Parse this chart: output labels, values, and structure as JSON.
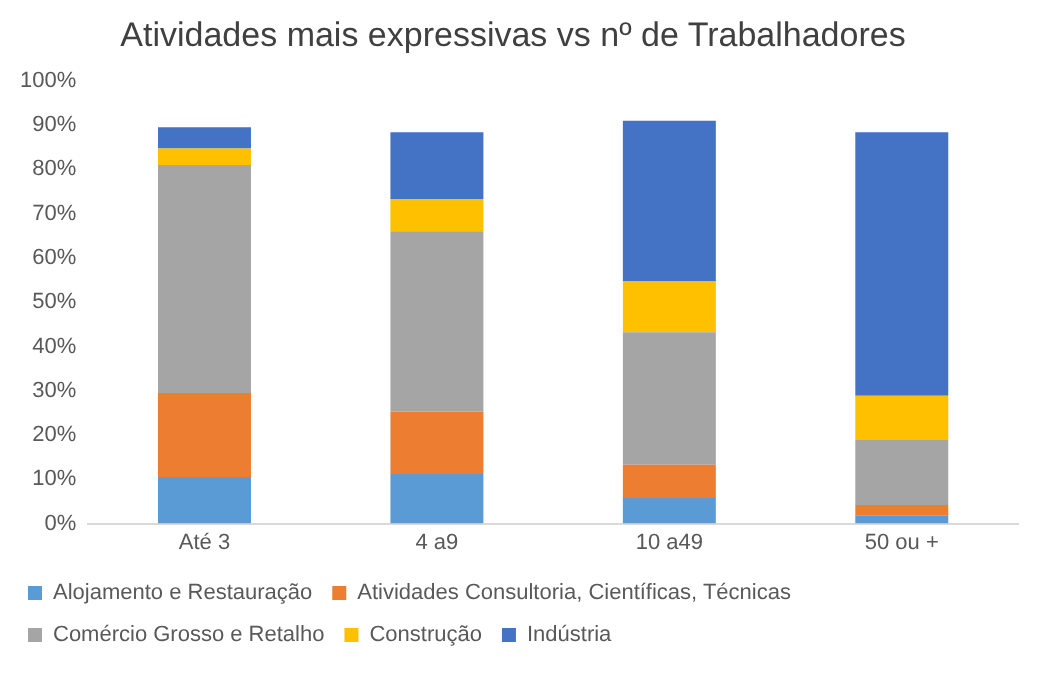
{
  "chart_data": {
    "type": "bar",
    "title": "Atividades mais expressivas vs nº de Trabalhadores",
    "stacked": true,
    "categories": [
      "Até 3",
      "4 a9",
      "10 a49",
      "50 ou +"
    ],
    "series": [
      {
        "name": "Alojamento e Restauração",
        "color": "#5b9bd5",
        "values": [
          10.5,
          11.2,
          5.8,
          1.8
        ]
      },
      {
        "name": "Atividades Consultoria, Científicas, Técnicas",
        "color": "#ed7d31",
        "values": [
          19,
          14.1,
          7.5,
          2.4
        ]
      },
      {
        "name": "Comércio Grosso e Retalho",
        "color": "#a5a5a5",
        "values": [
          51.5,
          40.7,
          29.9,
          14.7
        ]
      },
      {
        "name": "Construção",
        "color": "#ffc000",
        "values": [
          3.7,
          7.3,
          11.5,
          10
        ]
      },
      {
        "name": "Indústria",
        "color": "#4472c4",
        "values": [
          4.8,
          15.1,
          36.3,
          59.5
        ]
      }
    ],
    "ylim": [
      0,
      100
    ],
    "yticks": [
      {
        "value": 0,
        "label": "0%"
      },
      {
        "value": 10,
        "label": "10%"
      },
      {
        "value": 20,
        "label": "20%"
      },
      {
        "value": 30,
        "label": "30%"
      },
      {
        "value": 40,
        "label": "40%"
      },
      {
        "value": 50,
        "label": "50%"
      },
      {
        "value": 60,
        "label": "60%"
      },
      {
        "value": 70,
        "label": "70%"
      },
      {
        "value": 80,
        "label": "80%"
      },
      {
        "value": 90,
        "label": "90%"
      },
      {
        "value": 100,
        "label": "100%"
      }
    ],
    "grid": false,
    "legend": "bottom"
  }
}
